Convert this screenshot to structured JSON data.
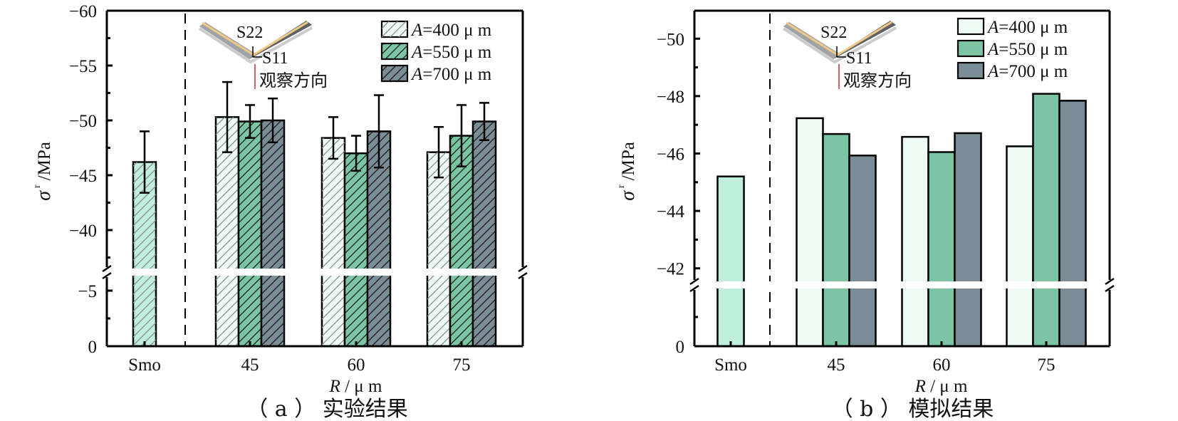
{
  "chart_data": [
    {
      "id": "a",
      "type": "bar",
      "caption": "（ a ） 实验结果",
      "ylabel_symbol": "σ",
      "ylabel_sub": "r",
      "ylabel_unit": "/MPa",
      "xlabel_italic": "R",
      "xlabel_rest": " / μ m",
      "categories": [
        "Smo",
        "45",
        "60",
        "75"
      ],
      "y_axis": {
        "break": true,
        "upper_range": [
          -60,
          -37.5
        ],
        "upper_ticks": [
          "-60",
          "-55",
          "-50",
          "-45",
          "-40"
        ],
        "lower_range": [
          -5,
          0
        ],
        "lower_ticks": [
          "-5",
          "0"
        ],
        "inverted": true
      },
      "hatched": true,
      "error_bars": true,
      "reference": {
        "category": "Smo",
        "value": -46.2,
        "error": 2.8
      },
      "series": [
        {
          "name": "A=400 μ m",
          "values": [
            null,
            -50.3,
            -48.4,
            -47.1
          ],
          "errors": [
            null,
            3.2,
            1.9,
            2.3
          ]
        },
        {
          "name": "A=550 μ m",
          "values": [
            null,
            -49.9,
            -47.0,
            -48.6
          ],
          "errors": [
            null,
            1.5,
            1.6,
            2.8
          ]
        },
        {
          "name": "A=700 μ m",
          "values": [
            null,
            -50.0,
            -49.0,
            -49.9
          ],
          "errors": [
            null,
            2.0,
            3.3,
            1.7
          ]
        }
      ],
      "legend": {
        "placement": "top-right",
        "items": [
          "A=400 μ m",
          "A=550 μ m",
          "A=700 μ m"
        ]
      },
      "inset": {
        "s22": "S22",
        "s11": "S11",
        "direction": "观察方向"
      }
    },
    {
      "id": "b",
      "type": "bar",
      "caption": "（ b ） 模拟结果",
      "ylabel_symbol": "σ",
      "ylabel_sub": "r",
      "ylabel_unit": "/MPa",
      "xlabel_italic": "R",
      "xlabel_rest": " / μ m",
      "categories": [
        "Smo",
        "45",
        "60",
        "75"
      ],
      "y_axis": {
        "break": true,
        "upper_range": [
          -51,
          -41.4
        ],
        "upper_ticks": [
          "-50",
          "-48",
          "-46",
          "-44",
          "-42"
        ],
        "lower_range": [
          null,
          0
        ],
        "lower_ticks": [
          "0"
        ],
        "inverted": true
      },
      "hatched": false,
      "error_bars": false,
      "reference": {
        "category": "Smo",
        "value": -45.2
      },
      "series": [
        {
          "name": "A=400 μ m",
          "values": [
            null,
            -47.23,
            -46.58,
            -46.25
          ]
        },
        {
          "name": "A=550 μ m",
          "values": [
            null,
            -46.68,
            -46.05,
            -48.08
          ]
        },
        {
          "name": "A=700 μ m",
          "values": [
            null,
            -45.93,
            -46.71,
            -47.84
          ]
        }
      ],
      "legend": {
        "placement": "top-right",
        "items": [
          "A=400 μ m",
          "A=550 μ m",
          "A=700 μ m"
        ]
      },
      "inset": {
        "s22": "S22",
        "s11": "S11",
        "direction": "观察方向"
      }
    }
  ],
  "colors": {
    "smo": "#bfeedd",
    "a400": "#eefbf5",
    "a550": "#7cc5a4",
    "a700": "#7a8c95",
    "axis": "#000000",
    "inset_line": "#cc2b2b",
    "inset_stripe": "#f0c987",
    "inset_body": "#9fa3a6"
  }
}
